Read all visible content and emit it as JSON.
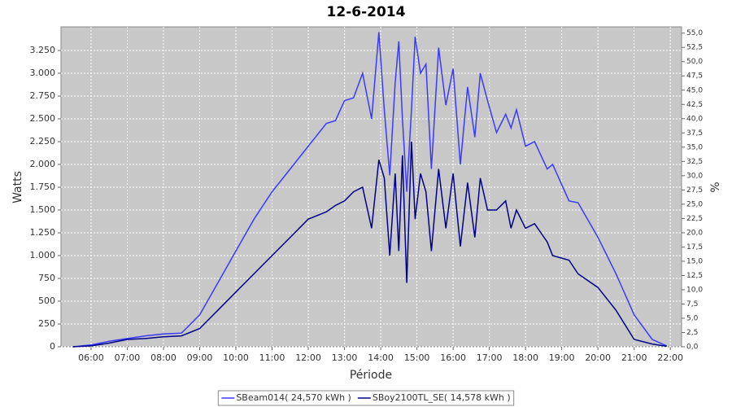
{
  "chart_data": {
    "type": "line",
    "title": "12-6-2014",
    "xlabel": "Période",
    "ylabel": "Watts",
    "y2label": "%",
    "x": [
      5.5,
      6,
      6.5,
      7,
      7.5,
      8,
      8.5,
      9,
      9.5,
      10,
      10.5,
      11,
      11.5,
      12,
      12.5,
      12.75,
      13,
      13.25,
      13.5,
      13.75,
      13.95,
      14.1,
      14.25,
      14.4,
      14.5,
      14.6,
      14.72,
      14.85,
      14.95,
      15.1,
      15.25,
      15.4,
      15.6,
      15.8,
      16,
      16.2,
      16.4,
      16.6,
      16.75,
      16.95,
      17.2,
      17.45,
      17.6,
      17.75,
      18,
      18.25,
      18.6,
      18.75,
      19.2,
      19.45,
      20,
      20.5,
      21,
      21.5,
      21.9
    ],
    "series": [
      {
        "name": "SBeam014( 24,570 kWh )",
        "color": "#3a3aff",
        "values": [
          0,
          20,
          60,
          90,
          120,
          140,
          150,
          350,
          700,
          1050,
          1400,
          1700,
          1950,
          2200,
          2450,
          2480,
          2700,
          2730,
          3000,
          2500,
          3450,
          2600,
          1880,
          2900,
          3350,
          2500,
          1700,
          2600,
          3400,
          3000,
          3100,
          1950,
          3280,
          2650,
          3050,
          2000,
          2850,
          2300,
          3000,
          2700,
          2350,
          2550,
          2400,
          2600,
          2200,
          2250,
          1950,
          2000,
          1600,
          1580,
          1200,
          800,
          350,
          80,
          10
        ]
      },
      {
        "name": "SBoy2100TL_SE( 14,578 kWh )",
        "color": "#00008b",
        "values": [
          0,
          10,
          40,
          80,
          90,
          110,
          120,
          200,
          400,
          600,
          800,
          1000,
          1200,
          1400,
          1480,
          1550,
          1600,
          1700,
          1750,
          1300,
          2050,
          1850,
          1000,
          1900,
          1050,
          2100,
          700,
          2250,
          1400,
          1900,
          1700,
          1050,
          1950,
          1300,
          1900,
          1100,
          1800,
          1200,
          1850,
          1500,
          1500,
          1600,
          1300,
          1500,
          1300,
          1350,
          1150,
          1000,
          950,
          800,
          650,
          400,
          80,
          30,
          5
        ]
      }
    ],
    "xlim": [
      5.17,
      22.31
    ],
    "xticks": [
      {
        "value": 6,
        "label": "06:00"
      },
      {
        "value": 7,
        "label": "07:00"
      },
      {
        "value": 8,
        "label": "08:00"
      },
      {
        "value": 9,
        "label": "09:00"
      },
      {
        "value": 10,
        "label": "10:00"
      },
      {
        "value": 11,
        "label": "11:00"
      },
      {
        "value": 12,
        "label": "12:00"
      },
      {
        "value": 13,
        "label": "13:00"
      },
      {
        "value": 14,
        "label": "14:00"
      },
      {
        "value": 15,
        "label": "15:00"
      },
      {
        "value": 16,
        "label": "16:00"
      },
      {
        "value": 17,
        "label": "17:00"
      },
      {
        "value": 18,
        "label": "18:00"
      },
      {
        "value": 19,
        "label": "19:00"
      },
      {
        "value": 20,
        "label": "20:00"
      },
      {
        "value": 21,
        "label": "21:00"
      },
      {
        "value": 22,
        "label": "22:00"
      }
    ],
    "ylim": [
      0,
      3509
    ],
    "yticks": [
      0,
      250,
      500,
      750,
      {
        "value": 1000,
        "label": "1.000"
      },
      {
        "value": 1250,
        "label": "1.250"
      },
      {
        "value": 1500,
        "label": "1.500"
      },
      {
        "value": 1750,
        "label": "1.750"
      },
      {
        "value": 2000,
        "label": "2.000"
      },
      {
        "value": 2250,
        "label": "2.250"
      },
      {
        "value": 2500,
        "label": "2.500"
      },
      {
        "value": 2750,
        "label": "2.750"
      },
      {
        "value": 3000,
        "label": "3.000"
      },
      {
        "value": 3250,
        "label": "3.250"
      }
    ],
    "y2lim": [
      0,
      56.1
    ],
    "y2ticks": [
      {
        "value": 0,
        "label": "0,0"
      },
      {
        "value": 2.5,
        "label": "2,5"
      },
      {
        "value": 5,
        "label": "5,0"
      },
      {
        "value": 7.5,
        "label": "7,5"
      },
      {
        "value": 10,
        "label": "10,0"
      },
      {
        "value": 12.5,
        "label": "12,5"
      },
      {
        "value": 15,
        "label": "15,0"
      },
      {
        "value": 17.5,
        "label": "17,5"
      },
      {
        "value": 20,
        "label": "20,0"
      },
      {
        "value": 22.5,
        "label": "22,5"
      },
      {
        "value": 25,
        "label": "25,0"
      },
      {
        "value": 27.5,
        "label": "27,5"
      },
      {
        "value": 30,
        "label": "30,0"
      },
      {
        "value": 32.5,
        "label": "32,5"
      },
      {
        "value": 35,
        "label": "35,0"
      },
      {
        "value": 37.5,
        "label": "37,5"
      },
      {
        "value": 40,
        "label": "40,0"
      },
      {
        "value": 42.5,
        "label": "42,5"
      },
      {
        "value": 45,
        "label": "45,0"
      },
      {
        "value": 47.5,
        "label": "47,5"
      },
      {
        "value": 50,
        "label": "50,0"
      },
      {
        "value": 52.5,
        "label": "52,5"
      },
      {
        "value": 55,
        "label": "55,0"
      }
    ],
    "grid": true,
    "plot_background": "#c8c8c8",
    "legend": "bottom"
  }
}
